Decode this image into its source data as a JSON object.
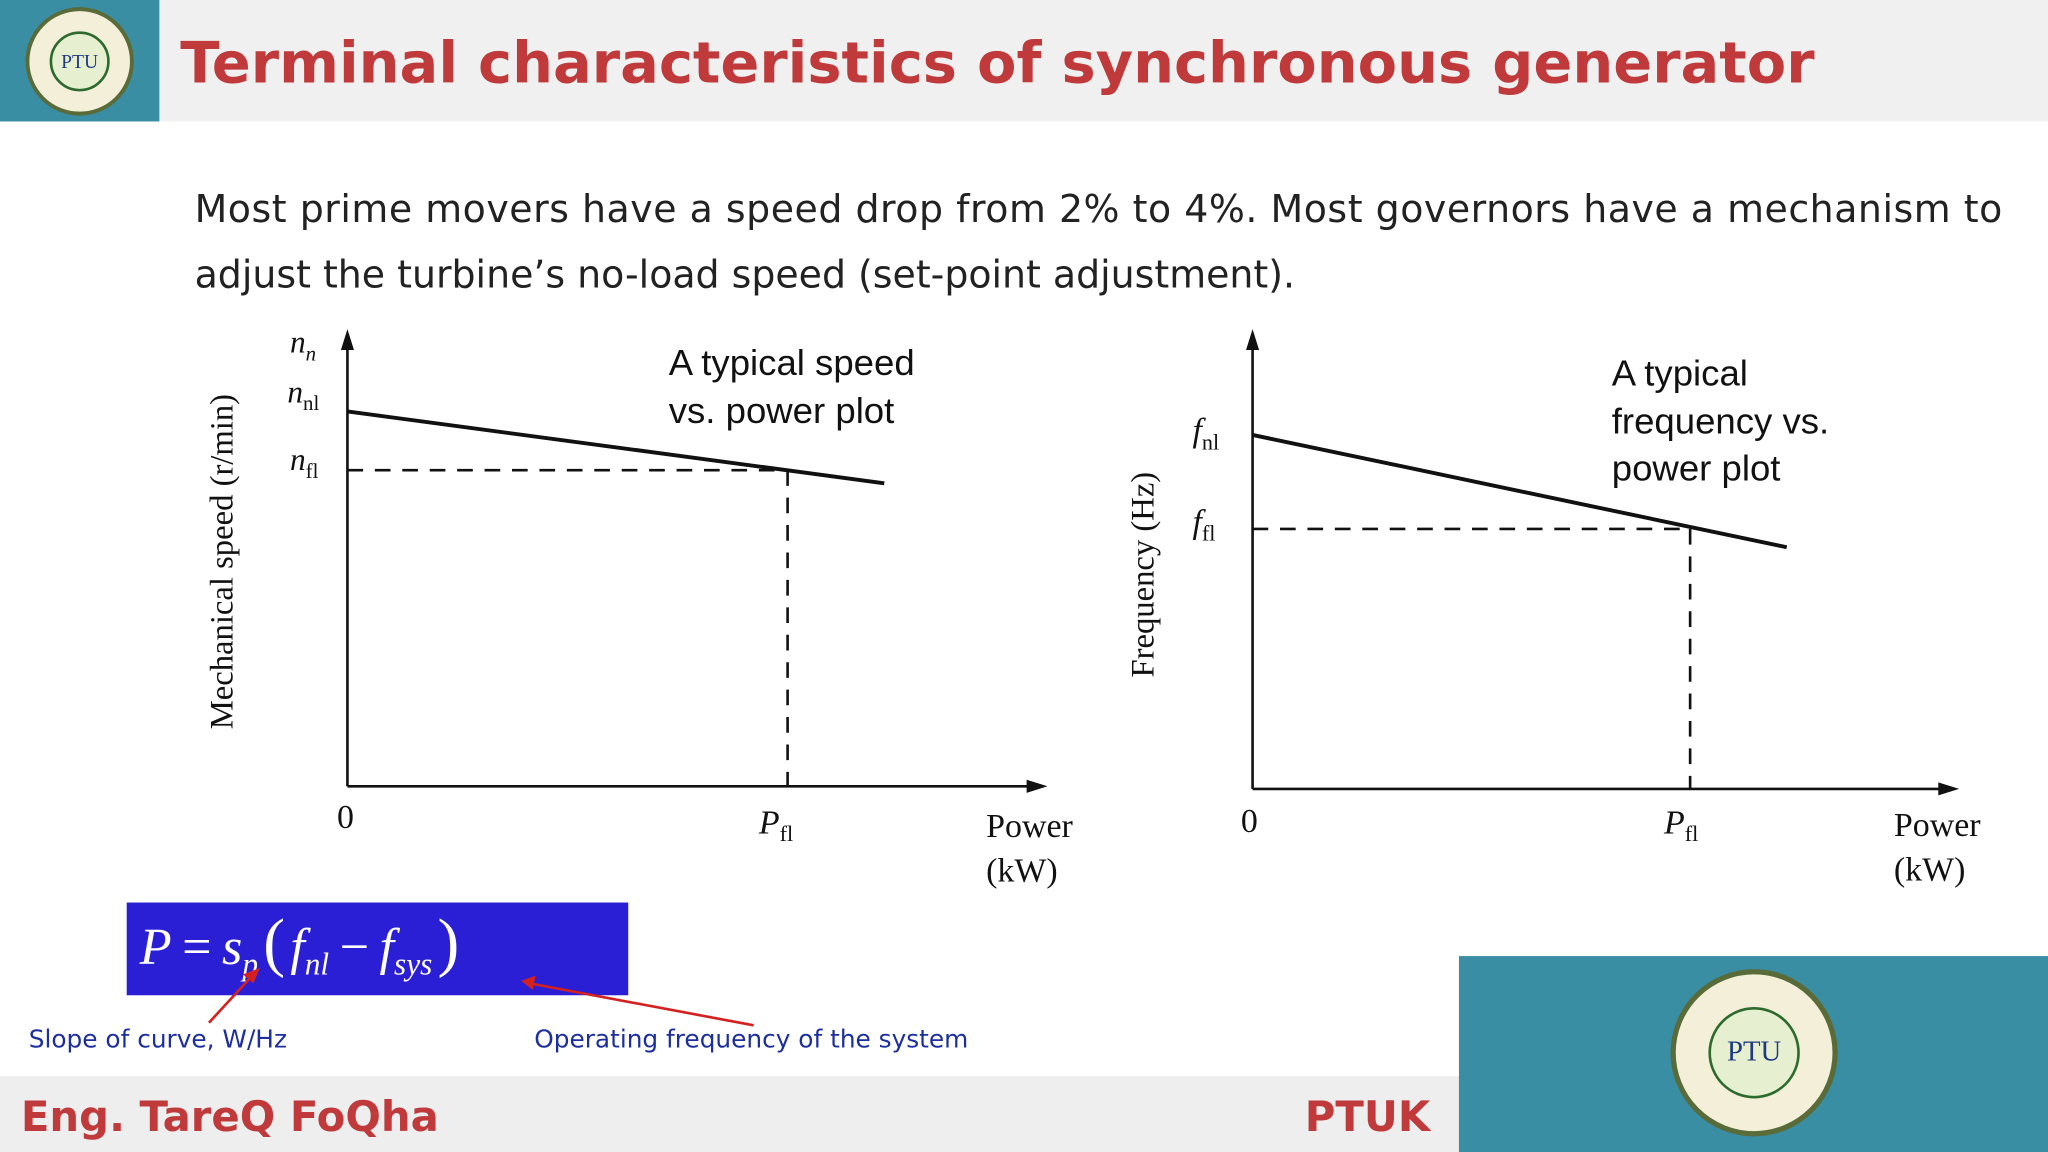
{
  "header": {
    "title": "Terminal characteristics of synchronous generator",
    "logo_text": "PTU"
  },
  "body": {
    "lines": [
      "Most prime movers have a speed drop from 2% to 4%. Most governors have a mechanism to",
      "adjust the turbine’s no-load speed (set-point adjustment)."
    ]
  },
  "speed_plot": {
    "caption": [
      "A typical speed",
      "vs. power plot"
    ],
    "y_label": "Mechanical speed (r/min)",
    "y_ticks": [
      {
        "symbol": "n",
        "sub": "n"
      },
      {
        "symbol": "n",
        "sub": "nl"
      },
      {
        "symbol": "n",
        "sub": "fl"
      }
    ],
    "origin": "0",
    "x_tick": {
      "symbol": "P",
      "sub": "fl"
    },
    "x_label": [
      "Power",
      "(kW)"
    ]
  },
  "frequency_plot": {
    "caption": [
      "A typical",
      "frequency vs.",
      "power plot"
    ],
    "y_label": "Frequency (Hz)",
    "y_ticks": [
      {
        "symbol": "f",
        "sub": "nl"
      },
      {
        "symbol": "f",
        "sub": "fl"
      }
    ],
    "origin": "0",
    "x_tick": {
      "symbol": "P",
      "sub": "fl"
    },
    "x_label": [
      "Power",
      "(kW)"
    ]
  },
  "formula": {
    "lhs": "P",
    "equals": "=",
    "coef": "s",
    "coef_sub": "p",
    "open": "(",
    "f1": "f",
    "f1_sub": "nl",
    "minus": "−",
    "f2": "f",
    "f2_sub": "sys",
    "close": ")"
  },
  "annotations": [
    "Slope of curve, W/Hz",
    "Operating frequency of the system"
  ],
  "footer": {
    "author": "Eng. TareQ FoQha",
    "org": "PTUK",
    "logo_text": "PTU"
  }
}
